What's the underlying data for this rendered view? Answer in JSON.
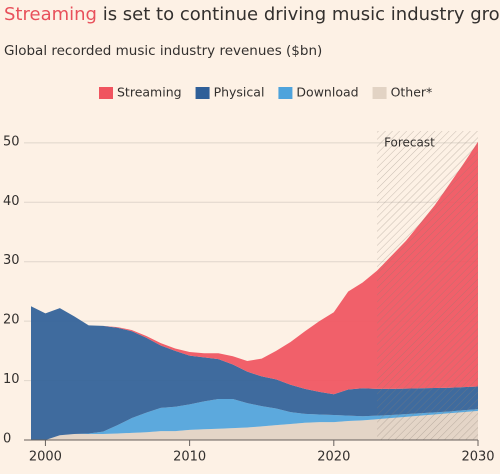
{
  "chart_data": {
    "type": "stacked_area",
    "title": {
      "highlight": "Streaming",
      "rest": "is set to continue driving music industry growth"
    },
    "subtitle": "Global recorded music industry revenues ($bn)",
    "x": [
      1999,
      2000,
      2001,
      2002,
      2003,
      2004,
      2005,
      2006,
      2007,
      2008,
      2009,
      2010,
      2011,
      2012,
      2013,
      2014,
      2015,
      2016,
      2017,
      2018,
      2019,
      2020,
      2021,
      2022,
      2023,
      2024,
      2025,
      2026,
      2027,
      2028,
      2029,
      2030
    ],
    "series": [
      {
        "name": "Streaming",
        "color": "#f0545f",
        "values": [
          0,
          0,
          0,
          0,
          0,
          0,
          0.1,
          0.2,
          0.3,
          0.4,
          0.4,
          0.6,
          0.7,
          1.0,
          1.4,
          1.8,
          3.0,
          4.8,
          7.2,
          9.7,
          11.9,
          13.8,
          16.5,
          17.8,
          19.9,
          22.4,
          24.85,
          27.8,
          30.75,
          34.2,
          37.6,
          41.2
        ]
      },
      {
        "name": "Physical",
        "color": "#2f5f98",
        "values": [
          22.5,
          21.3,
          21.4,
          19.8,
          18.2,
          17.8,
          16.4,
          14.6,
          12.6,
          10.5,
          9.4,
          8.2,
          7.4,
          6.7,
          5.8,
          5.3,
          5.0,
          4.9,
          4.6,
          4.2,
          3.8,
          3.5,
          4.4,
          4.7,
          4.5,
          4.4,
          4.3,
          4.2,
          4.1,
          4.0,
          3.9,
          3.8
        ]
      },
      {
        "name": "Download",
        "color": "#4ea3dc",
        "values": [
          0,
          0,
          0,
          0,
          0.1,
          0.4,
          1.4,
          2.5,
          3.3,
          3.9,
          4.1,
          4.3,
          4.7,
          5.0,
          4.9,
          4.1,
          3.4,
          2.8,
          2.0,
          1.5,
          1.3,
          1.2,
          0.9,
          0.7,
          0.6,
          0.5,
          0.45,
          0.4,
          0.35,
          0.3,
          0.3,
          0.3
        ]
      },
      {
        "name": "Other*",
        "color": "#e2d3c4",
        "values": [
          0,
          0,
          0.8,
          1,
          1,
          1,
          1.1,
          1.2,
          1.3,
          1.5,
          1.5,
          1.7,
          1.8,
          1.9,
          2.0,
          2.1,
          2.3,
          2.5,
          2.7,
          2.9,
          3.0,
          3.0,
          3.2,
          3.3,
          3.5,
          3.7,
          3.9,
          4.1,
          4.3,
          4.5,
          4.7,
          4.9
        ]
      }
    ],
    "forecast": {
      "label": "Forecast",
      "x": [
        2023,
        2030
      ]
    },
    "xlim": [
      1999,
      2030
    ],
    "xticks": [
      2000,
      2010,
      2020,
      2030
    ],
    "ylim": [
      0,
      52
    ],
    "yticks": [
      0,
      10,
      20,
      30,
      40,
      50
    ],
    "grid": true
  }
}
